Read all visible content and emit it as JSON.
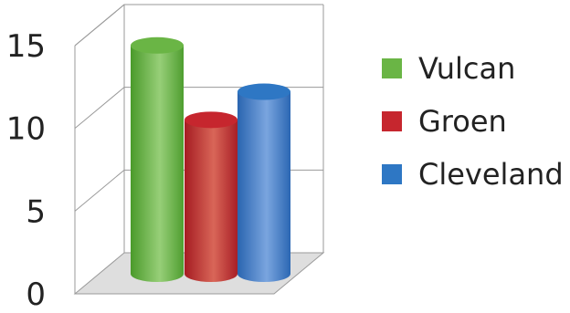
{
  "chart_data": {
    "type": "bar",
    "style": "3d-cylinder",
    "categories": [
      "Vulcan",
      "Groen",
      "Cleveland"
    ],
    "values": [
      13.8,
      9.3,
      11.0
    ],
    "colors": [
      "#6ab545",
      "#c6262e",
      "#2e77c4"
    ],
    "ylim": [
      0,
      15
    ],
    "yticks": [
      "0",
      "5",
      "10",
      "15"
    ],
    "grid": true,
    "legend": {
      "position": "right",
      "entries": [
        "Vulcan",
        "Groen",
        "Cleveland"
      ]
    }
  }
}
